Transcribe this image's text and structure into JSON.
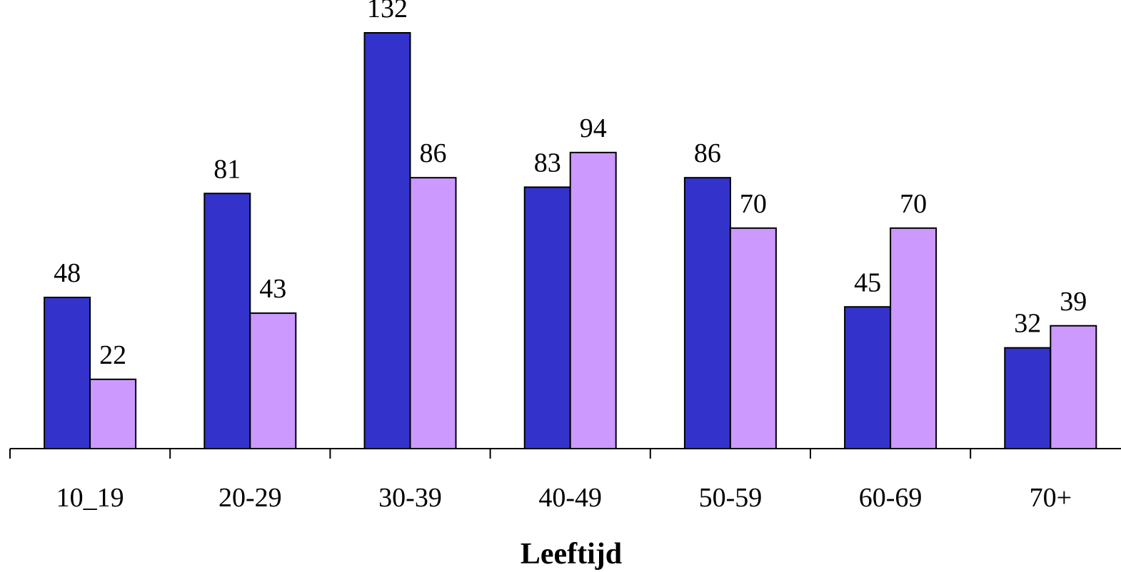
{
  "chart_data": {
    "type": "bar",
    "categories": [
      "10_19",
      "20-29",
      "30-39",
      "40-49",
      "50-59",
      "60-69",
      "70+"
    ],
    "series": [
      {
        "values": [
          48,
          81,
          132,
          83,
          86,
          45,
          32
        ],
        "color": "#3333CC"
      },
      {
        "values": [
          22,
          43,
          86,
          94,
          70,
          70,
          39
        ],
        "color": "#CC99FF"
      }
    ],
    "xlabel": "Leeftijd",
    "ylabel": "",
    "ylim": [
      0,
      132
    ],
    "data_labels": true,
    "grid": false,
    "legend": "none"
  }
}
